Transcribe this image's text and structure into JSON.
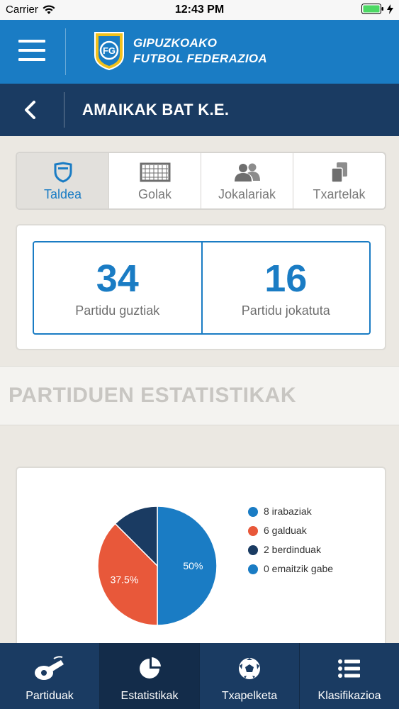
{
  "statusbar": {
    "carrier": "Carrier",
    "time": "12:43 PM"
  },
  "header": {
    "logo_line1": "GIPUZKOAKO",
    "logo_line2": "FUTBOL FEDERAZIOA",
    "logo_monogram": "FG"
  },
  "team": {
    "name": "AMAIKAK BAT K.E."
  },
  "tabs": [
    {
      "label": "Taldea",
      "icon": "shield-icon",
      "active": true
    },
    {
      "label": "Golak",
      "icon": "goal-icon",
      "active": false
    },
    {
      "label": "Jokalariak",
      "icon": "players-icon",
      "active": false
    },
    {
      "label": "Txartelak",
      "icon": "cards-icon",
      "active": false
    }
  ],
  "counts": {
    "total": {
      "value": "34",
      "label": "Partidu guztiak"
    },
    "played": {
      "value": "16",
      "label": "Partidu jokatuta"
    }
  },
  "section_title": "PARTIDUEN ESTATISTIKAK",
  "chart_data": {
    "type": "pie",
    "slices": [
      {
        "label": "8 irabaziak",
        "value": 8,
        "percent_label": "50%",
        "color": "#1a7cc4"
      },
      {
        "label": "6 galduak",
        "value": 6,
        "percent_label": "37.5%",
        "color": "#e8583a"
      },
      {
        "label": "2 berdinduak",
        "value": 2,
        "percent_label": "",
        "color": "#1a3b62"
      },
      {
        "label": "0 emaitzik gabe",
        "value": 0,
        "percent_label": "",
        "color": "#1a7cc4"
      }
    ],
    "legend_position": "right"
  },
  "colors": {
    "primary_blue": "#1a7cc4",
    "navy": "#1a3b62",
    "loss_red": "#e8583a"
  },
  "bottom_nav": [
    {
      "label": "Partiduak",
      "icon": "whistle-icon",
      "active": false
    },
    {
      "label": "Estatistikak",
      "icon": "pie-chart-icon",
      "active": true
    },
    {
      "label": "Txapelketa",
      "icon": "soccer-ball-icon",
      "active": false
    },
    {
      "label": "Klasifikazioa",
      "icon": "list-icon",
      "active": false
    }
  ]
}
